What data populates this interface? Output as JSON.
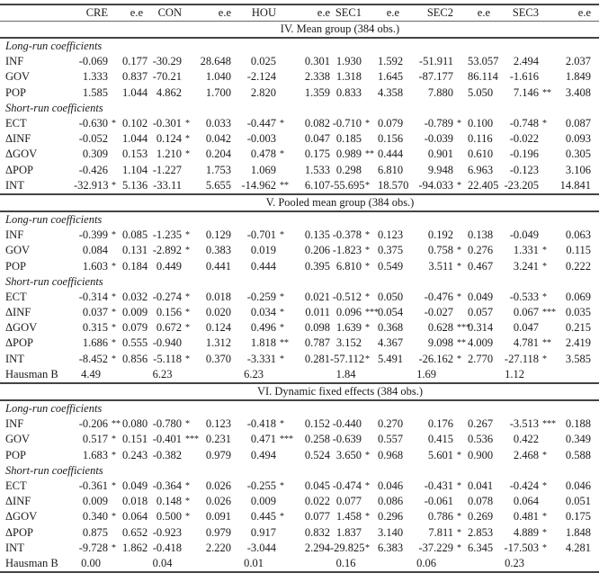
{
  "header": [
    "",
    "CRE",
    "",
    "e.e",
    "CON",
    "",
    "e.e",
    "HOU",
    "",
    "e.e",
    "SEC1",
    "",
    "e.e",
    "SEC2",
    "",
    "e.e",
    "SEC3",
    "",
    "e.e"
  ],
  "sections": [
    {
      "title": "IV. Mean group (384 obs.)",
      "long_label": "Long-run coefficients",
      "short_label": "Short-run coefficients",
      "long_rows": [
        [
          "INF",
          "-0.069",
          "",
          "0.177",
          "-30.29",
          "",
          "28.648",
          "0.025",
          "",
          "0.301",
          "1.930",
          "",
          "1.592",
          "-51.911",
          "",
          "53.057",
          "2.494",
          "",
          "2.037"
        ],
        [
          "GOV",
          "1.333",
          "",
          "0.837",
          "-70.21",
          "",
          "1.040",
          "-2.124",
          "",
          "2.338",
          "1.318",
          "",
          "1.645",
          "-87.177",
          "",
          "86.114",
          "-1.616",
          "",
          "1.849"
        ],
        [
          "POP",
          "1.585",
          "",
          "1.044",
          "4.862",
          "",
          "1.700",
          "2.820",
          "",
          "1.359",
          "0.833",
          "",
          "4.358",
          "7.880",
          "",
          "5.050",
          "7.146",
          "**",
          "3.408"
        ]
      ],
      "short_rows": [
        [
          "ECT",
          "-0.630",
          "*",
          "0.102",
          "-0.301",
          "*",
          "0.033",
          "-0.447",
          "*",
          "0.082",
          "-0.710",
          "*",
          "0.079",
          "-0.789",
          "*",
          "0.100",
          "-0.748",
          "*",
          "0.087"
        ],
        [
          "ΔINF",
          "-0.052",
          "",
          "1.044",
          "0.124",
          "*",
          "0.042",
          "-0.003",
          "",
          "0.047",
          "0.185",
          "",
          "0.156",
          "-0.039",
          "",
          "0.116",
          "-0.022",
          "",
          "0.093"
        ],
        [
          "ΔGOV",
          "0.309",
          "",
          "0.153",
          "1.210",
          "*",
          "0.204",
          "0.478",
          "*",
          "0.175",
          "0.989",
          "**",
          "0.444",
          "0.901",
          "",
          "0.610",
          "-0.196",
          "",
          "0.305"
        ],
        [
          "ΔPOP",
          "-0.426",
          "",
          "1.104",
          "-1.227",
          "",
          "1.753",
          "1.069",
          "",
          "1.533",
          "0.298",
          "",
          "6.810",
          "9.948",
          "",
          "6.963",
          "-0.123",
          "",
          "3.106"
        ],
        [
          "INT",
          "-32.913",
          "*",
          "5.136",
          "-33.11",
          "",
          "5.655",
          "-14.962",
          "**",
          "6.107",
          "-55.695",
          "*",
          "18.570",
          "-94.033",
          "*",
          "22.405",
          "-23.205",
          "",
          "14.841"
        ]
      ]
    },
    {
      "title": "V. Pooled mean group (384 obs.)",
      "long_label": "Long-run coefficients",
      "short_label": "Short-run coefficients",
      "long_rows": [
        [
          "INF",
          "-0.399",
          "*",
          "0.085",
          "-1.235",
          "*",
          "0.129",
          "-0.701",
          "*",
          "0.135",
          "-0.378",
          "*",
          "0.123",
          "0.192",
          "",
          "0.138",
          "-0.049",
          "",
          "0.063"
        ],
        [
          "GOV",
          "0.084",
          "",
          "0.131",
          "-2.892",
          "*",
          "0.383",
          "0.019",
          "",
          "0.206",
          "-1.823",
          "*",
          "0.375",
          "0.758",
          "*",
          "0.276",
          "1.331",
          "*",
          "0.115"
        ],
        [
          "POP",
          "1.603",
          "*",
          "0.184",
          "0.449",
          "",
          "0.441",
          "0.444",
          "",
          "0.395",
          "6.810",
          "*",
          "0.549",
          "3.511",
          "*",
          "0.467",
          "3.241",
          "*",
          "0.222"
        ]
      ],
      "short_rows": [
        [
          "ECT",
          "-0.314",
          "*",
          "0.032",
          "-0.274",
          "*",
          "0.018",
          "-0.259",
          "*",
          "0.021",
          "-0.512",
          "*",
          "0.050",
          "-0.476",
          "*",
          "0.049",
          "-0.533",
          "*",
          "0.069"
        ],
        [
          "ΔINF",
          "0.037",
          "*",
          "0.009",
          "0.156",
          "*",
          "0.020",
          "0.034",
          "*",
          "0.011",
          "0.096",
          "***",
          "0.054",
          "-0.027",
          "",
          "0.057",
          "0.067",
          "***",
          "0.035"
        ],
        [
          "ΔGOV",
          "0.315",
          "*",
          "0.079",
          "0.672",
          "*",
          "0.124",
          "0.496",
          "*",
          "0.098",
          "1.639",
          "*",
          "0.368",
          "0.628",
          "***",
          "0.314",
          "0.047",
          "",
          "0.215"
        ],
        [
          "ΔPOP",
          "1.686",
          "*",
          "0.555",
          "-0.940",
          "",
          "1.312",
          "1.818",
          "**",
          "0.787",
          "3.152",
          "",
          "4.367",
          "9.098",
          "**",
          "4.009",
          "4.781",
          "**",
          "2.419"
        ],
        [
          "INT",
          "-8.452",
          "*",
          "0.856",
          "-5.118",
          "*",
          "0.370",
          "-3.331",
          "*",
          "0.281",
          "-57.112",
          "*",
          "5.491",
          "-26.162",
          "*",
          "2.770",
          "-27.118",
          "*",
          "3.585"
        ]
      ],
      "hausman": {
        "label": "Hausman B",
        "values": [
          "4.49",
          "6.23",
          "6.23",
          "1.84",
          "1.69",
          "1.12"
        ]
      }
    },
    {
      "title": "VI. Dynamic fixed effects (384 obs.)",
      "long_label": "Long-run coefficients",
      "short_label": "Short-run coefficients",
      "long_rows": [
        [
          "INF",
          "-0.206",
          "**",
          "0.080",
          "-0.780",
          "*",
          "0.123",
          "-0.418",
          "*",
          "0.152",
          "-0.440",
          "",
          "0.270",
          "0.176",
          "",
          "0.267",
          "-3.513",
          "***",
          "0.188"
        ],
        [
          "GOV",
          "0.517",
          "*",
          "0.151",
          "-0.401",
          "***",
          "0.231",
          "0.471",
          "***",
          "0.258",
          "-0.639",
          "",
          "0.557",
          "0.415",
          "",
          "0.536",
          "0.422",
          "",
          "0.349"
        ],
        [
          "POP",
          "1.683",
          "*",
          "0.243",
          "-0.382",
          "",
          "0.979",
          "0.494",
          "",
          "0.524",
          "3.650",
          "*",
          "0.968",
          "5.601",
          "*",
          "0.900",
          "2.468",
          "*",
          "0.588"
        ]
      ],
      "short_rows": [
        [
          "ECT",
          "-0.361",
          "*",
          "0.049",
          "-0.364",
          "*",
          "0.026",
          "-0.255",
          "*",
          "0.045",
          "-0.474",
          "*",
          "0.046",
          "-0.431",
          "*",
          "0.041",
          "-0.424",
          "*",
          "0.046"
        ],
        [
          "ΔINF",
          "0.009",
          "",
          "0.018",
          "0.148",
          "*",
          "0.026",
          "0.009",
          "",
          "0.022",
          "0.077",
          "",
          "0.086",
          "-0.061",
          "",
          "0.078",
          "0.064",
          "",
          "0.051"
        ],
        [
          "ΔGOV",
          "0.340",
          "*",
          "0.064",
          "0.500",
          "*",
          "0.091",
          "0.445",
          "*",
          "0.077",
          "1.458",
          "*",
          "0.296",
          "0.786",
          "*",
          "0.269",
          "0.481",
          "*",
          "0.175"
        ],
        [
          "ΔPOP",
          "0.875",
          "",
          "0.652",
          "-0.923",
          "",
          "0.979",
          "0.917",
          "",
          "0.832",
          "1.837",
          "",
          "3.140",
          "7.811",
          "*",
          "2.853",
          "4.889",
          "*",
          "1.848"
        ],
        [
          "INT",
          "-9.728",
          "*",
          "1.862",
          "-0.418",
          "",
          "2.220",
          "-3.044",
          "",
          "2.294",
          "-29.825",
          "*",
          "6.383",
          "-37.229",
          "*",
          "6.345",
          "-17.503",
          "*",
          "4.281"
        ]
      ],
      "hausman": {
        "label": "Hausman B",
        "values": [
          "0.00",
          "0.04",
          "0.01",
          "0.16",
          "0.06",
          "0.23"
        ]
      }
    }
  ]
}
